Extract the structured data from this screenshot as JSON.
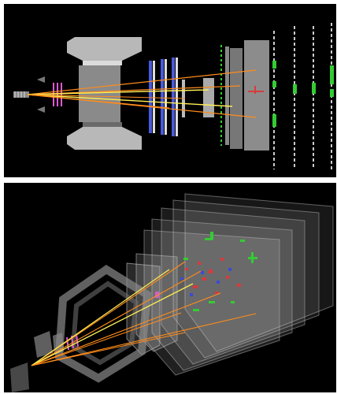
{
  "figure": {
    "panels": [
      {
        "view": "side-view"
      },
      {
        "view": "3d-view"
      }
    ],
    "colors": {
      "background": "#000000",
      "track": "#ff8c1a",
      "muon_track": "#ffee55",
      "magnet": "#bdbdbd",
      "hit_green": "#33cc33",
      "hit_red": "#d93a3a",
      "hit_blue": "#3a4ad9",
      "vertex": "#e05ad2"
    }
  }
}
